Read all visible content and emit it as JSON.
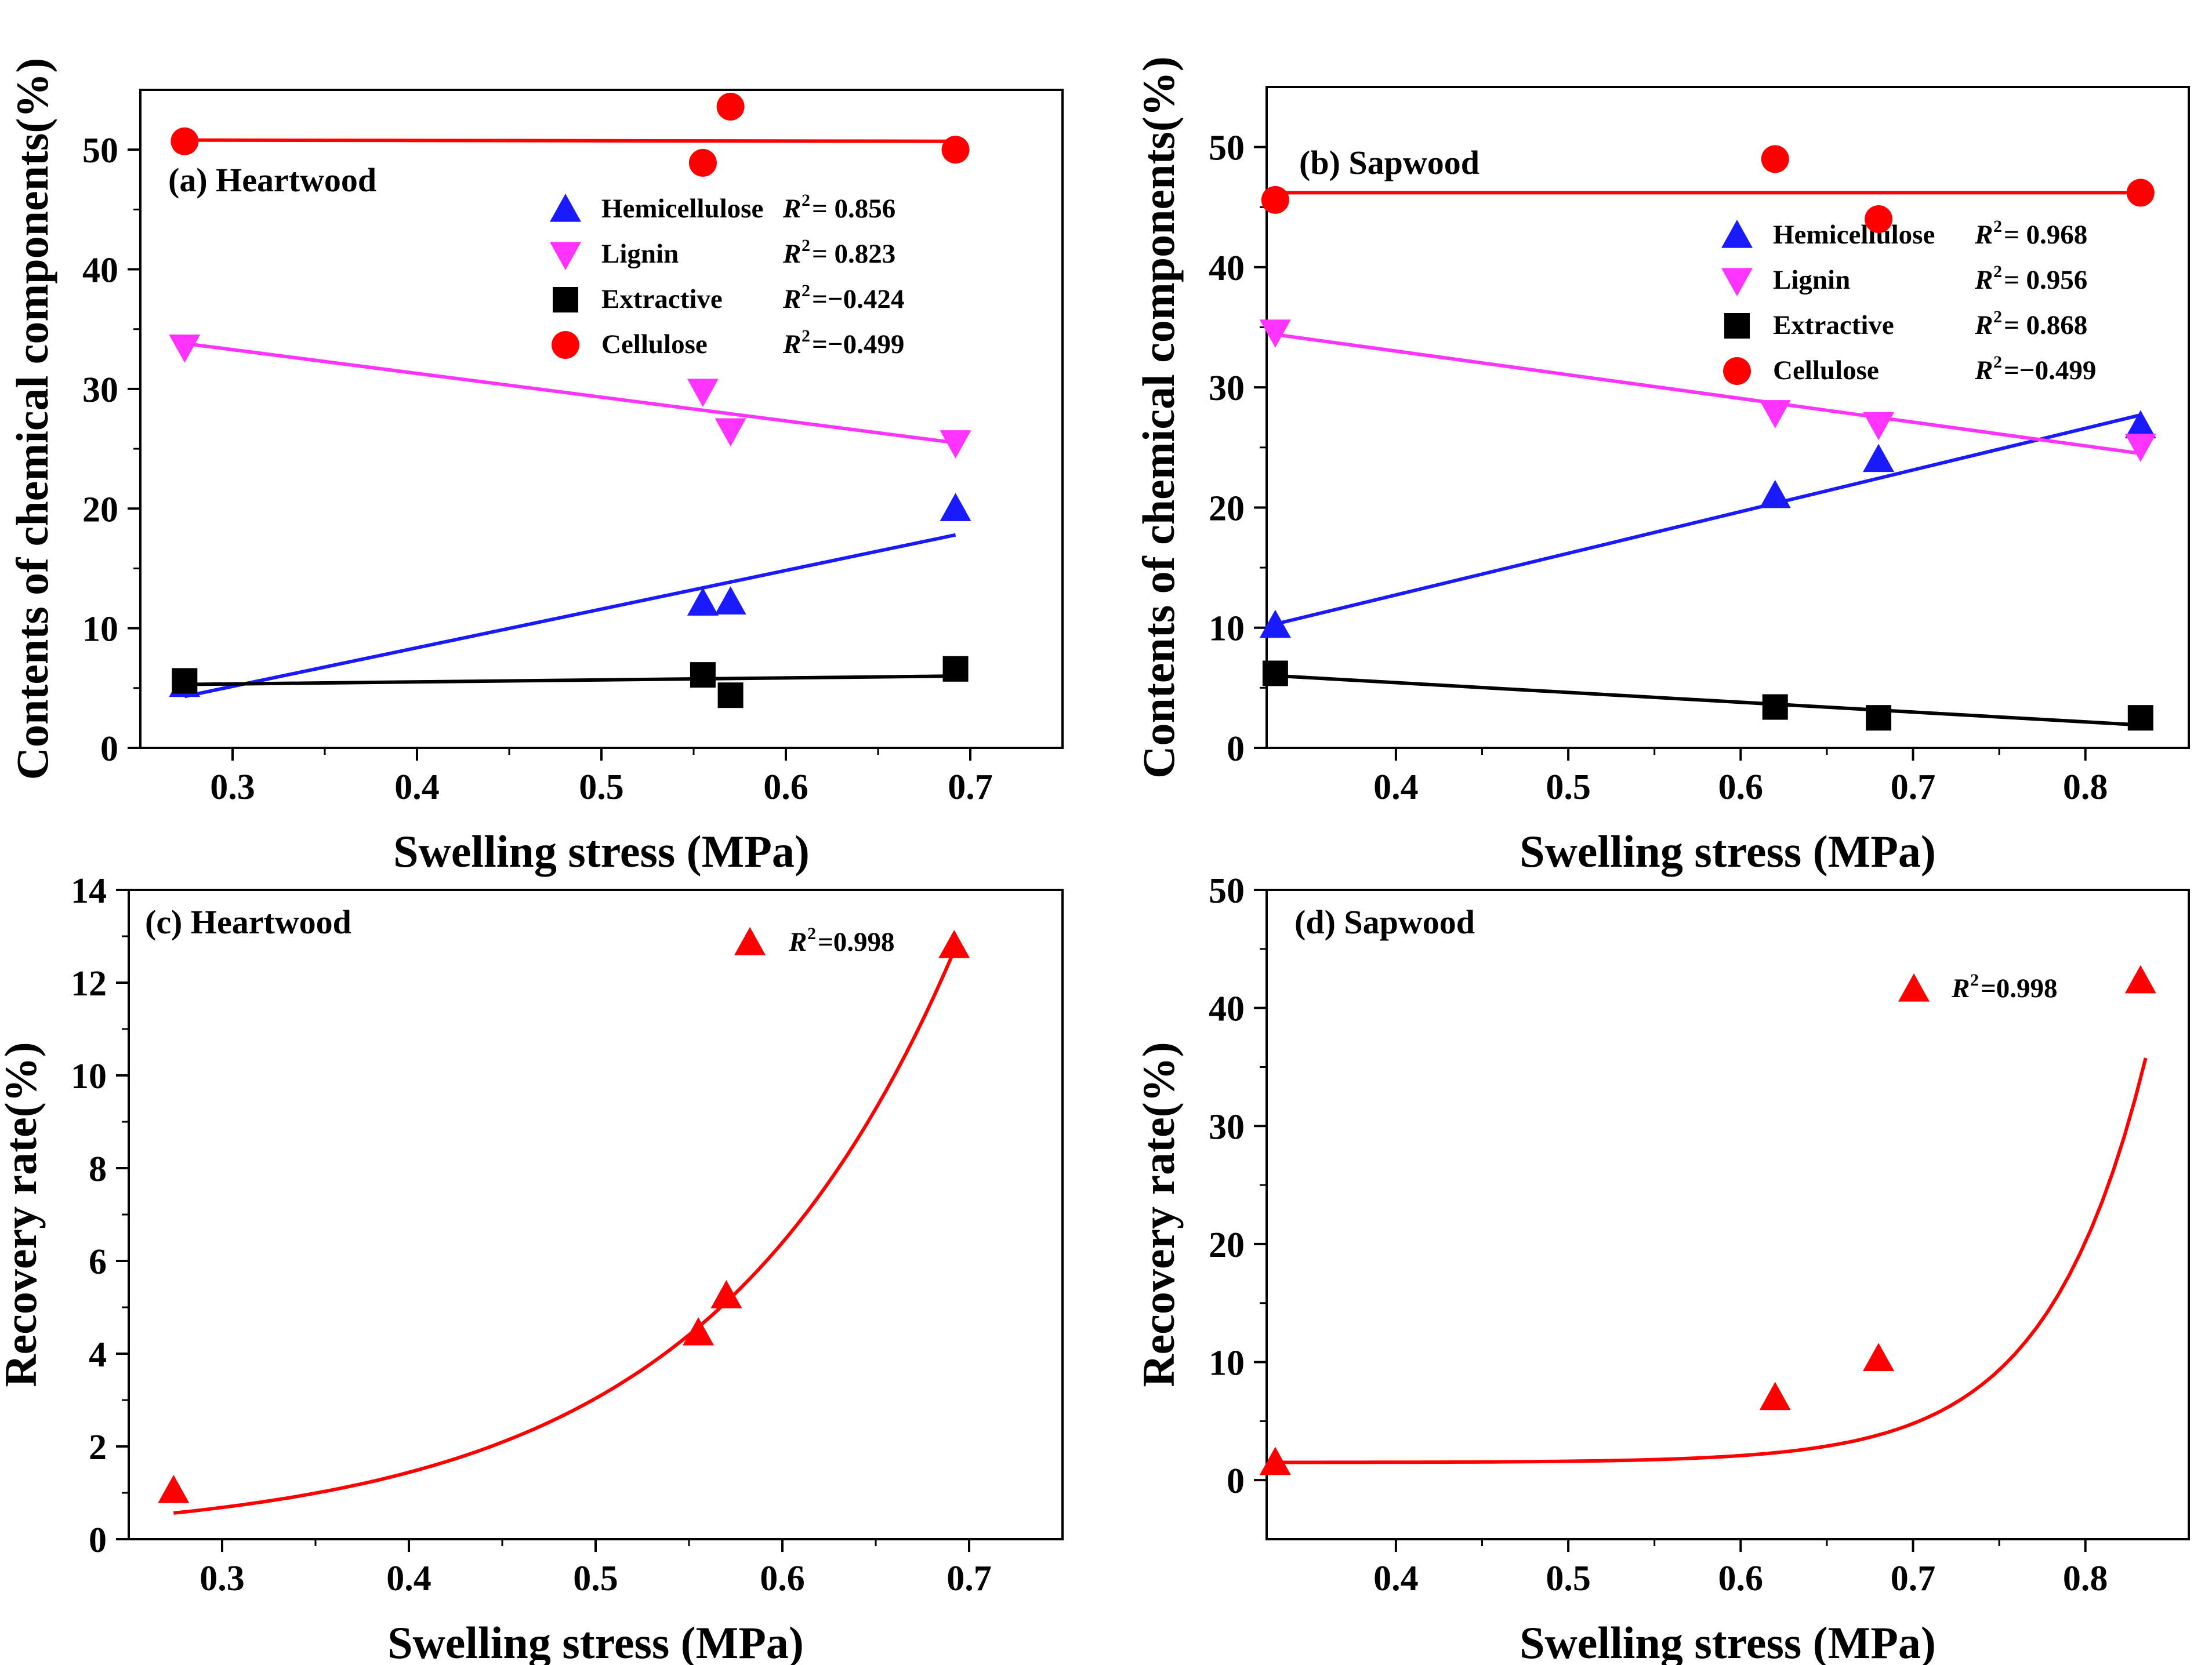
{
  "figure": {
    "colors": {
      "hemicellulose": "#1a1aff",
      "lignin": "#ff33ff",
      "extractive": "#000000",
      "cellulose": "#ff0000",
      "recovery": "#ff0000"
    }
  },
  "chart_data": [
    {
      "id": "a",
      "type": "scatter",
      "title": "(a) Heartwood",
      "xlabel": "Swelling stress (MPa)",
      "ylabel": "Contents of chemical components(%)",
      "xlim": [
        0.25,
        0.75
      ],
      "ylim": [
        0,
        55
      ],
      "xticks": [
        0.3,
        0.4,
        0.5,
        0.6,
        0.7
      ],
      "yticks": [
        0,
        10,
        20,
        30,
        40,
        50
      ],
      "xtick_labels": [
        "0.3",
        "0.4",
        "0.5",
        "0.6",
        "0.7"
      ],
      "ytick_labels": [
        "0",
        "10",
        "20",
        "30",
        "40",
        "50"
      ],
      "legend_position": "top-right",
      "series": [
        {
          "name": "Hemicellulose",
          "r2_label": "R",
          "r2_value": "=  0.856",
          "marker": "triangle-up",
          "color_key": "hemicellulose",
          "x": [
            0.274,
            0.555,
            0.57,
            0.692
          ],
          "y": [
            5.3,
            12.1,
            12.2,
            20.0
          ],
          "fit": {
            "kind": "linear",
            "x": [
              0.274,
              0.692
            ],
            "y": [
              4.3,
              17.8
            ]
          }
        },
        {
          "name": "Lignin",
          "r2_label": "R",
          "r2_value": "=  0.823",
          "marker": "triangle-down",
          "color_key": "lignin",
          "x": [
            0.274,
            0.555,
            0.57,
            0.692
          ],
          "y": [
            33.5,
            29.8,
            26.5,
            25.5
          ],
          "fit": {
            "kind": "linear",
            "x": [
              0.274,
              0.692
            ],
            "y": [
              33.8,
              25.5
            ]
          }
        },
        {
          "name": "Extractive",
          "r2_label": "R",
          "r2_value": "=−0.424",
          "marker": "square",
          "color_key": "extractive",
          "x": [
            0.274,
            0.555,
            0.57,
            0.692
          ],
          "y": [
            5.6,
            6.1,
            4.4,
            6.6
          ],
          "fit": {
            "kind": "linear",
            "x": [
              0.274,
              0.692
            ],
            "y": [
              5.3,
              6.0
            ]
          }
        },
        {
          "name": "Cellulose",
          "r2_label": "R",
          "r2_value": "=−0.499",
          "marker": "circle",
          "color_key": "cellulose",
          "x": [
            0.274,
            0.555,
            0.57,
            0.692
          ],
          "y": [
            50.7,
            48.9,
            53.6,
            50.0
          ],
          "fit": {
            "kind": "linear",
            "x": [
              0.274,
              0.692
            ],
            "y": [
              50.8,
              50.7
            ]
          }
        }
      ]
    },
    {
      "id": "b",
      "type": "scatter",
      "title": "(b) Sapwood",
      "xlabel": "Swelling stress (MPa)",
      "ylabel": "Contents of chemical components(%)",
      "xlim": [
        0.325,
        0.86
      ],
      "ylim": [
        0,
        55
      ],
      "xticks": [
        0.4,
        0.5,
        0.6,
        0.7,
        0.8
      ],
      "yticks": [
        0,
        10,
        20,
        30,
        40,
        50
      ],
      "xtick_labels": [
        "0.4",
        "0.5",
        "0.6",
        "0.7",
        "0.8"
      ],
      "ytick_labels": [
        "0",
        "10",
        "20",
        "30",
        "40",
        "50"
      ],
      "legend_position": "right",
      "series": [
        {
          "name": "Hemicellulose",
          "r2_label": "R",
          "r2_value": "=  0.968",
          "marker": "triangle-up",
          "color_key": "hemicellulose",
          "x": [
            0.33,
            0.62,
            0.68,
            0.832
          ],
          "y": [
            10.2,
            21.0,
            24.0,
            26.8
          ],
          "fit": {
            "kind": "linear",
            "x": [
              0.33,
              0.832
            ],
            "y": [
              10.3,
              27.7
            ]
          }
        },
        {
          "name": "Lignin",
          "r2_label": "R",
          "r2_value": "=  0.956",
          "marker": "triangle-down",
          "color_key": "lignin",
          "x": [
            0.33,
            0.62,
            0.68,
            0.832
          ],
          "y": [
            34.6,
            27.9,
            26.9,
            25.1
          ],
          "fit": {
            "kind": "linear",
            "x": [
              0.33,
              0.832
            ],
            "y": [
              34.4,
              24.5
            ]
          }
        },
        {
          "name": "Extractive",
          "r2_label": "R",
          "r2_value": "=  0.868",
          "marker": "square",
          "color_key": "extractive",
          "x": [
            0.33,
            0.62,
            0.68,
            0.832
          ],
          "y": [
            6.2,
            3.4,
            2.5,
            2.5
          ],
          "fit": {
            "kind": "linear",
            "x": [
              0.33,
              0.832
            ],
            "y": [
              6.0,
              1.9
            ]
          }
        },
        {
          "name": "Cellulose",
          "r2_label": "R",
          "r2_value": "=−0.499",
          "marker": "circle",
          "color_key": "cellulose",
          "x": [
            0.33,
            0.62,
            0.68,
            0.832
          ],
          "y": [
            45.6,
            49.0,
            44.0,
            46.2
          ],
          "fit": {
            "kind": "linear",
            "x": [
              0.33,
              0.832
            ],
            "y": [
              46.2,
              46.2
            ]
          }
        }
      ]
    },
    {
      "id": "c",
      "type": "scatter",
      "title": "(c) Heartwood",
      "xlabel": "Swelling stress (MPa)",
      "ylabel": "Recovery rate(%)",
      "xlim": [
        0.25,
        0.75
      ],
      "ylim": [
        0,
        14
      ],
      "xticks": [
        0.3,
        0.4,
        0.5,
        0.6,
        0.7
      ],
      "yticks": [
        0,
        2,
        4,
        6,
        8,
        10,
        12,
        14
      ],
      "xtick_labels": [
        "0.3",
        "0.4",
        "0.5",
        "0.6",
        "0.7"
      ],
      "ytick_labels": [
        "0",
        "2",
        "4",
        "6",
        "8",
        "10",
        "12",
        "14"
      ],
      "legend_position": "top-right",
      "series": [
        {
          "name": "",
          "r2_label": "R",
          "r2_value": "=0.998",
          "marker": "triangle-up",
          "color_key": "recovery",
          "x": [
            0.274,
            0.555,
            0.57,
            0.692
          ],
          "y": [
            1.05,
            4.45,
            5.25,
            12.8
          ],
          "fit": {
            "kind": "exponential",
            "a": 0.0732,
            "b": 7.45,
            "xrange": [
              0.274,
              0.692
            ]
          }
        }
      ]
    },
    {
      "id": "d",
      "type": "scatter",
      "title": "(d) Sapwood",
      "xlabel": "Swelling stress (MPa)",
      "ylabel": "Recovery rate(%)",
      "xlim": [
        0.325,
        0.86
      ],
      "ylim": [
        -5,
        50
      ],
      "xticks": [
        0.4,
        0.5,
        0.6,
        0.7,
        0.8
      ],
      "yticks": [
        0,
        10,
        20,
        30,
        40,
        50
      ],
      "xtick_labels": [
        "0.4",
        "0.5",
        "0.6",
        "0.7",
        "0.8"
      ],
      "ytick_labels": [
        "0",
        "10",
        "20",
        "30",
        "40",
        "50"
      ],
      "legend_position": "top-right",
      "series": [
        {
          "name": "",
          "r2_label": "R",
          "r2_value": "=0.998",
          "marker": "triangle-up",
          "color_key": "recovery",
          "x": [
            0.33,
            0.62,
            0.68,
            0.832
          ],
          "y": [
            1.5,
            7.0,
            10.3,
            42.3
          ],
          "fit": {
            "kind": "exponential-offset",
            "a": 1.75e-05,
            "b": 17.35,
            "c": 1.5,
            "xrange": [
              0.33,
              0.835
            ]
          }
        }
      ]
    }
  ]
}
